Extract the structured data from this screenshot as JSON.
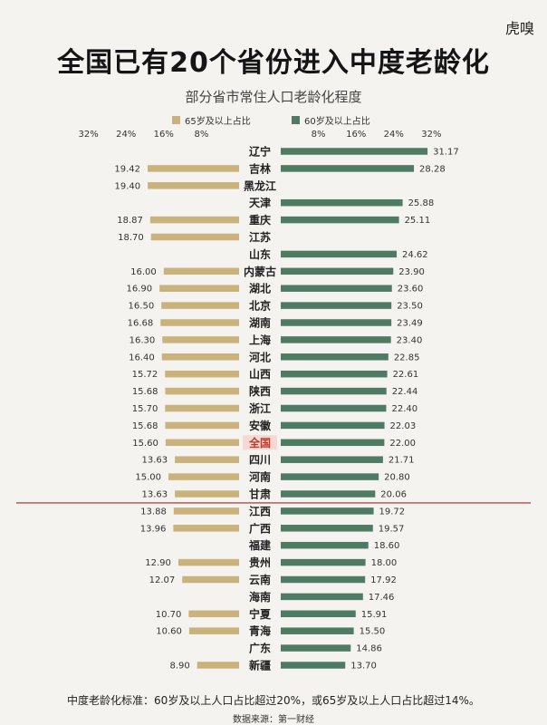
{
  "logo": "虎嗅",
  "title": "全国已有20个省份进入中度老龄化",
  "subtitle": "部分省市常住人口老龄化程度",
  "footnote": "中度老龄化标准：60岁及以上人口占比超过20%，或65岁及以上人口占比超过14%。",
  "source": "数据来源：第一财经",
  "colors": {
    "left": "#c9b27c",
    "right": "#4f7a63",
    "divider": "#9c2a2a",
    "highlight_bg": "#f6d8d4",
    "highlight_text": "#c0392b"
  },
  "chart_data": {
    "type": "bar",
    "title": "部分省市常住人口老龄化程度",
    "left_ticks": [
      "32%",
      "24%",
      "16%",
      "8%"
    ],
    "right_ticks": [
      "8%",
      "16%",
      "24%",
      "32%"
    ],
    "xlim": [
      0,
      32
    ],
    "highlight_category": "全国",
    "divider_after": "甘肃",
    "categories": [
      "辽宁",
      "吉林",
      "黑龙江",
      "天津",
      "重庆",
      "江苏",
      "山东",
      "内蒙古",
      "湖北",
      "北京",
      "湖南",
      "上海",
      "河北",
      "山西",
      "陕西",
      "浙江",
      "安徽",
      "全国",
      "四川",
      "河南",
      "甘肃",
      "江西",
      "广西",
      "福建",
      "贵州",
      "云南",
      "海南",
      "宁夏",
      "青海",
      "广东",
      "新疆"
    ],
    "series": [
      {
        "name": "65岁及以上占比",
        "side": "left",
        "values": [
          null,
          19.42,
          19.4,
          null,
          18.87,
          18.7,
          null,
          16.0,
          16.9,
          16.5,
          16.68,
          16.3,
          16.4,
          15.72,
          15.68,
          15.7,
          15.68,
          15.6,
          13.63,
          15.0,
          13.63,
          13.88,
          13.96,
          null,
          12.9,
          12.07,
          null,
          10.7,
          10.6,
          null,
          8.9
        ],
        "labels": [
          null,
          "19.42",
          "19.40",
          null,
          "18.87",
          "18.70",
          null,
          "16.00",
          "16.90",
          "16.50",
          "16.68",
          "16.30",
          "16.40",
          "15.72",
          "15.68",
          "15.70",
          "15.68",
          "15.60",
          "13.63",
          "15.00",
          "13.63",
          "13.88",
          "13.96",
          null,
          "12.90",
          "12.07",
          null,
          "10.70",
          "10.60",
          null,
          "8.90"
        ]
      },
      {
        "name": "60岁及以上占比",
        "side": "right",
        "values": [
          31.17,
          28.28,
          null,
          25.88,
          25.11,
          null,
          24.62,
          23.9,
          23.6,
          23.5,
          23.49,
          23.4,
          22.85,
          22.61,
          22.44,
          22.4,
          22.03,
          22.0,
          21.71,
          20.8,
          20.06,
          19.72,
          19.57,
          18.6,
          18.0,
          17.92,
          17.46,
          15.91,
          15.5,
          14.86,
          13.7
        ],
        "labels": [
          "31.17",
          "28.28",
          null,
          "25.88",
          "25.11",
          null,
          "24.62",
          "23.90",
          "23.60",
          "23.50",
          "23.49",
          "23.40",
          "22.85",
          "22.61",
          "22.44",
          "22.40",
          "22.03",
          "22.00",
          "21.71",
          "20.80",
          "20.06",
          "19.72",
          "19.57",
          "18.60",
          "18.00",
          "17.92",
          "17.46",
          "15.91",
          "15.50",
          "14.86",
          "13.70"
        ]
      }
    ]
  }
}
